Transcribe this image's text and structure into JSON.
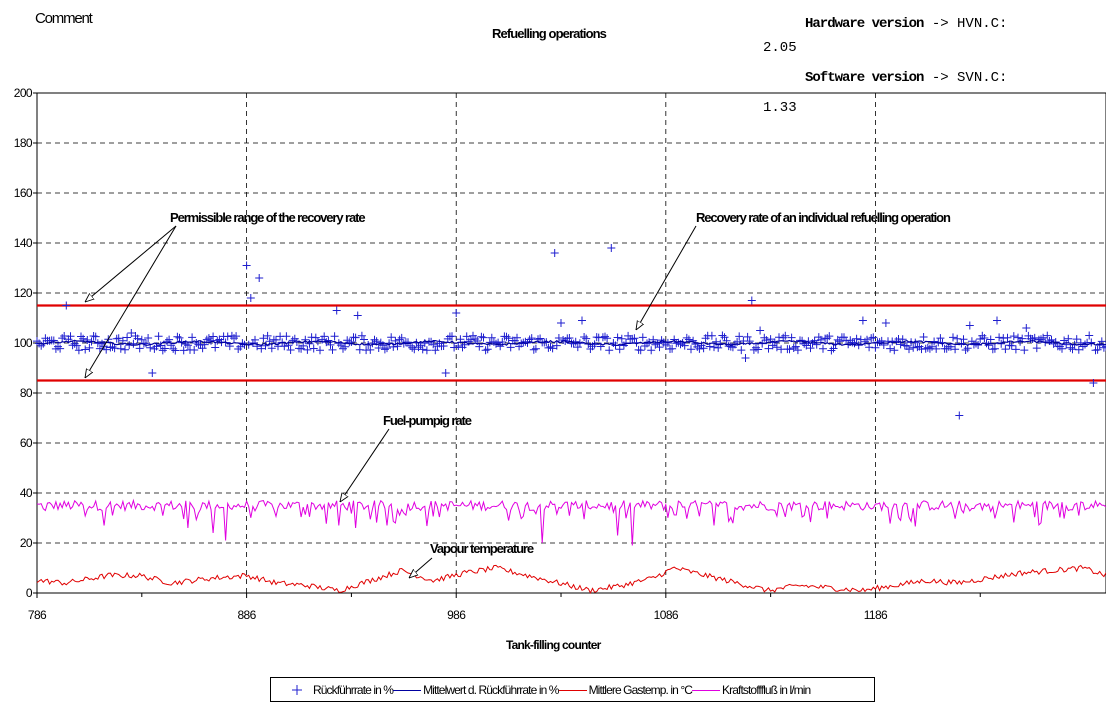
{
  "header": {
    "comment": "Comment",
    "title": "Refuelling operations",
    "hardware_label": "Hardware version",
    "hardware_ref": "-> HVN.C:",
    "hardware_value": "2.05",
    "software_label": "Software version",
    "software_ref": "-> SVN.C:",
    "software_value": "1.33"
  },
  "colors": {
    "recovery_points": "#1f1fcf",
    "mean_recovery": "#0000a0",
    "gas_temp": "#e00000",
    "fuel_flow": "#e000e0",
    "limit_lines": "#e00000",
    "grid": "#000000"
  },
  "chart_data": {
    "type": "scatter",
    "x_range": [
      786,
      1296
    ],
    "y_range": [
      0,
      200
    ],
    "xticks": [
      786,
      886,
      986,
      1086,
      1186
    ],
    "yticks": [
      0,
      20,
      40,
      60,
      80,
      100,
      120,
      140,
      160,
      180,
      200
    ],
    "xlabel": "Tank-filling counter",
    "grid": true,
    "limit_lines": [
      115,
      85
    ],
    "legend_position": "bottom",
    "series": [
      {
        "name": "Rückführrate in %",
        "kind": "points",
        "baseline": 100,
        "noise": 3,
        "outliers": [
          [
            800,
            115
          ],
          [
            831,
            104
          ],
          [
            841,
            88
          ],
          [
            886,
            131
          ],
          [
            888,
            118
          ],
          [
            892,
            126
          ],
          [
            929,
            113
          ],
          [
            939,
            111
          ],
          [
            981,
            88
          ],
          [
            986,
            112
          ],
          [
            1033,
            136
          ],
          [
            1036,
            108
          ],
          [
            1046,
            109
          ],
          [
            1060,
            138
          ],
          [
            1124,
            94
          ],
          [
            1127,
            117
          ],
          [
            1131,
            105
          ],
          [
            1180,
            109
          ],
          [
            1191,
            108
          ],
          [
            1226,
            71
          ],
          [
            1231,
            107
          ],
          [
            1244,
            109
          ],
          [
            1258,
            106
          ],
          [
            1290,
            84
          ]
        ]
      },
      {
        "name": "Mittelwert d. Rückführrate in %",
        "kind": "line",
        "baseline": 100
      },
      {
        "name": "Mittlere Gastemp. in °C",
        "kind": "line",
        "points": [
          [
            786,
            5
          ],
          [
            800,
            4
          ],
          [
            820,
            7
          ],
          [
            835,
            7
          ],
          [
            850,
            4
          ],
          [
            870,
            6
          ],
          [
            886,
            7
          ],
          [
            900,
            4
          ],
          [
            915,
            3
          ],
          [
            930,
            1
          ],
          [
            945,
            5
          ],
          [
            960,
            9
          ],
          [
            975,
            5
          ],
          [
            990,
            8
          ],
          [
            1005,
            10
          ],
          [
            1020,
            7
          ],
          [
            1035,
            4
          ],
          [
            1050,
            1
          ],
          [
            1065,
            3
          ],
          [
            1080,
            6
          ],
          [
            1090,
            10
          ],
          [
            1105,
            7
          ],
          [
            1120,
            4
          ],
          [
            1135,
            1
          ],
          [
            1150,
            3
          ],
          [
            1165,
            2
          ],
          [
            1180,
            1
          ],
          [
            1195,
            3
          ],
          [
            1210,
            5
          ],
          [
            1225,
            4
          ],
          [
            1240,
            6
          ],
          [
            1255,
            8
          ],
          [
            1270,
            9
          ],
          [
            1285,
            10
          ],
          [
            1296,
            7
          ]
        ]
      },
      {
        "name": "Kraftstofffluß in l/min",
        "kind": "line",
        "baseline": 35,
        "dips": [
          [
            790,
            33
          ],
          [
            818,
            27
          ],
          [
            858,
            26
          ],
          [
            870,
            24
          ],
          [
            876,
            21
          ],
          [
            930,
            27
          ],
          [
            938,
            26
          ],
          [
            957,
            28
          ],
          [
            1011,
            29
          ],
          [
            1027,
            20
          ],
          [
            1063,
            23
          ],
          [
            1070,
            19
          ],
          [
            1185,
            34
          ]
        ]
      }
    ]
  },
  "annotations": [
    {
      "text": "Permissible range of the recovery rate"
    },
    {
      "text": "Recovery rate of an individual refuelling operation"
    },
    {
      "text": "Fuel-pumpig rate"
    },
    {
      "text": "Vapour temperature"
    }
  ],
  "legend": {
    "items": [
      {
        "label": "Rückführrate in %"
      },
      {
        "label": "Mittelwert d. Rückführrate in %"
      },
      {
        "label": "Mittlere Gastemp. in °C"
      },
      {
        "label": "Kraftstofffluß in l/min"
      }
    ]
  }
}
